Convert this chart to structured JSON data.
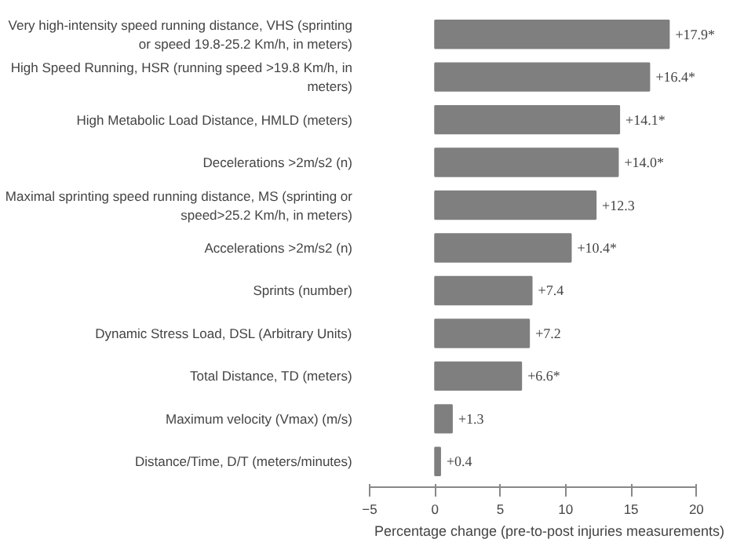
{
  "chart_data": {
    "type": "bar",
    "orientation": "horizontal",
    "categories": [
      "Very high-intensity speed running distance, VHS (sprinting or speed 19.8-25.2 Km/h, in meters)",
      "High Speed Running, HSR (running speed >19.8 Km/h, in meters)",
      "High Metabolic Load Distance, HMLD (meters)",
      "Decelerations >2m/s2 (n)",
      "Maximal sprinting speed running distance, MS (sprinting or speed>25.2 Km/h, in meters)",
      "Accelerations >2m/s2 (n)",
      "Sprints (number)",
      "Dynamic Stress Load, DSL (Arbitrary Units)",
      "Total Distance, TD (meters)",
      "Maximum velocity (Vmax) (m/s)",
      "Distance/Time, D/T (meters/minutes)"
    ],
    "values": [
      17.9,
      16.4,
      14.1,
      14.0,
      12.3,
      10.4,
      7.4,
      7.2,
      6.6,
      1.3,
      0.4
    ],
    "value_labels": [
      "+17.9*",
      "+16.4*",
      "+14.1*",
      "+14.0*",
      "+12.3",
      "+10.4*",
      "+7.4",
      "+7.2",
      "+6.6*",
      "+1.3",
      "+0.4"
    ],
    "color": "#7f7f7f",
    "xlabel": "Percentage change (pre-to-post injuries measurements)",
    "xlim": [
      -5,
      20
    ],
    "xticks": [
      -5,
      0,
      5,
      10,
      15,
      20
    ],
    "grid": false
  }
}
